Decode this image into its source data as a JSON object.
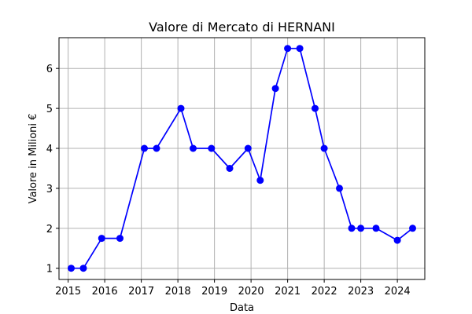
{
  "chart_data": {
    "type": "line",
    "title": "Valore di Mercato di HERNANI",
    "xlabel": "Data",
    "ylabel": "Valore in Milioni €",
    "x_ticks": [
      "2015",
      "2016",
      "2017",
      "2018",
      "2019",
      "2020",
      "2021",
      "2022",
      "2023",
      "2024"
    ],
    "y_ticks": [
      "1",
      "2",
      "3",
      "4",
      "5",
      "6"
    ],
    "xlim": [
      "2014-10-01",
      "2024-10-01"
    ],
    "ylim": [
      0.72,
      6.77
    ],
    "grid": true,
    "series": [
      {
        "color": "#0000ff",
        "marker": "circle",
        "points": [
          {
            "x": "2015-02-01",
            "y": 1.0
          },
          {
            "x": "2015-06-01",
            "y": 1.0
          },
          {
            "x": "2015-12-01",
            "y": 1.75
          },
          {
            "x": "2016-06-01",
            "y": 1.75
          },
          {
            "x": "2017-02-01",
            "y": 4.0
          },
          {
            "x": "2017-06-01",
            "y": 4.0
          },
          {
            "x": "2018-02-01",
            "y": 5.0
          },
          {
            "x": "2018-06-01",
            "y": 4.0
          },
          {
            "x": "2018-12-01",
            "y": 4.0
          },
          {
            "x": "2019-06-01",
            "y": 3.5
          },
          {
            "x": "2019-12-01",
            "y": 4.0
          },
          {
            "x": "2020-04-01",
            "y": 3.2
          },
          {
            "x": "2020-09-01",
            "y": 5.5
          },
          {
            "x": "2021-01-01",
            "y": 6.5
          },
          {
            "x": "2021-05-01",
            "y": 6.5
          },
          {
            "x": "2021-10-01",
            "y": 5.0
          },
          {
            "x": "2022-01-01",
            "y": 4.0
          },
          {
            "x": "2022-06-01",
            "y": 3.0
          },
          {
            "x": "2022-10-01",
            "y": 2.0
          },
          {
            "x": "2023-01-01",
            "y": 2.0
          },
          {
            "x": "2023-06-01",
            "y": 2.0
          },
          {
            "x": "2024-01-01",
            "y": 1.7
          },
          {
            "x": "2024-06-01",
            "y": 2.0
          }
        ]
      }
    ]
  }
}
